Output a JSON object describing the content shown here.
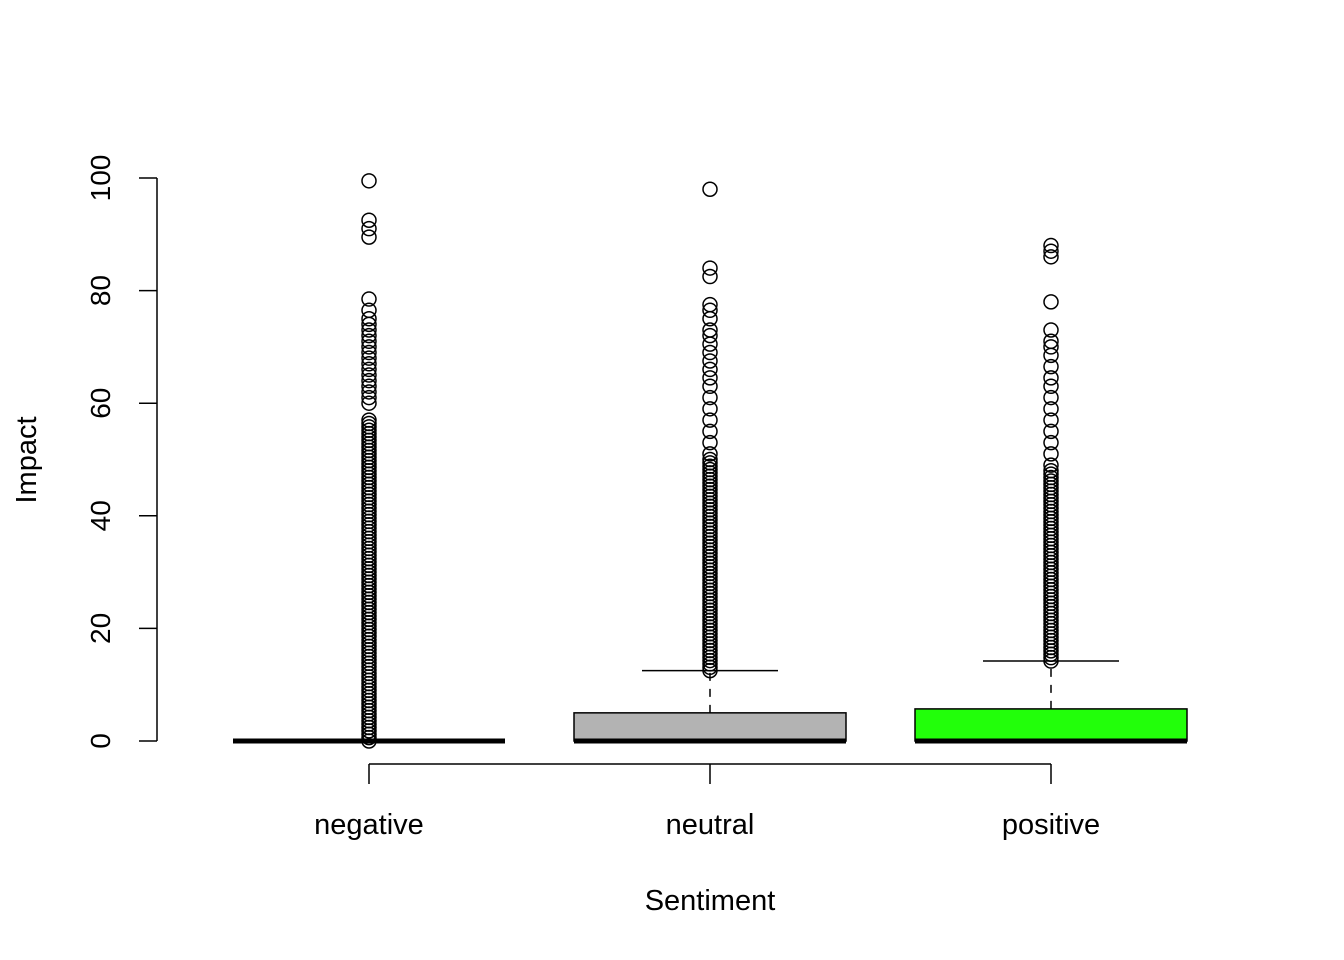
{
  "chart_data": {
    "type": "boxplot",
    "title": "",
    "xlabel": "Sentiment",
    "ylabel": "Impact",
    "ylim": [
      0,
      100
    ],
    "yticks": [
      0,
      20,
      40,
      60,
      80,
      100
    ],
    "grid": false,
    "legend": "none",
    "categories": [
      "negative",
      "neutral",
      "positive"
    ],
    "boxes": [
      {
        "category": "negative",
        "color": "#ffffff",
        "min": 0,
        "q1": 0,
        "median": 0,
        "q3": 0,
        "max": 0,
        "outlier_band": [
          0,
          57
        ],
        "outliers": [
          60,
          61,
          62,
          63,
          64,
          65,
          66,
          67,
          68,
          69,
          70,
          71,
          72,
          73,
          74,
          75,
          76.5,
          78.5,
          89.5,
          91,
          92.5,
          99.5
        ]
      },
      {
        "category": "neutral",
        "color": "#b3b3b3",
        "min": 0,
        "q1": 0,
        "median": 0,
        "q3": 5,
        "max": 12.5,
        "outlier_band": [
          12.5,
          50
        ],
        "outliers": [
          51,
          53,
          55,
          57,
          59,
          61,
          63,
          64.5,
          66,
          67.5,
          69,
          70.5,
          72,
          73,
          75,
          76.5,
          77.5,
          82.5,
          84,
          98
        ]
      },
      {
        "category": "positive",
        "color": "#22ff0a",
        "min": 0,
        "q1": 0,
        "median": 0,
        "q3": 5.7,
        "max": 14.2,
        "outlier_band": [
          14.2,
          48
        ],
        "outliers": [
          49,
          51,
          53,
          55,
          57,
          59,
          61,
          63,
          64.5,
          66.5,
          68.5,
          70,
          71,
          73,
          78,
          86,
          87,
          88
        ]
      }
    ]
  }
}
